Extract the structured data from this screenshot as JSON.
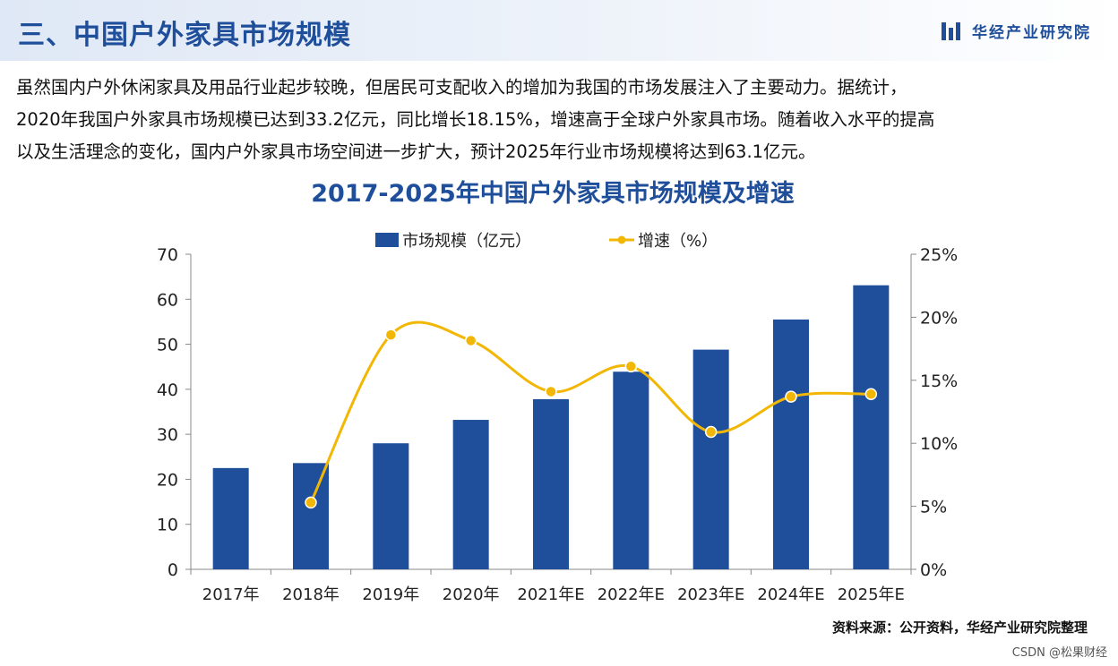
{
  "header": {
    "title": "三、中国户外家具市场规模",
    "logo_text": "华经产业研究院"
  },
  "intro": {
    "lines": [
      "虽然国内户外休闲家具及用品行业起步较晚，但居民可支配收入的增加为我国的市场发展注入了主要动力。据统计，",
      "2020年我国户外家具市场规模已达到33.2亿元，同比增长18.15%，增速高于全球户外家具市场。随着收入水平的提高",
      "以及生活理念的变化，国内户外家具市场空间进一步扩大，预计2025年行业市场规模将达到63.1亿元。"
    ]
  },
  "chart_data": {
    "type": "bar",
    "title": "2017-2025年中国户外家具市场规模及增速",
    "categories": [
      "2017年",
      "2018年",
      "2019年",
      "2020年",
      "2021年E",
      "2022年E",
      "2023年E",
      "2024年E",
      "2025年E"
    ],
    "series": [
      {
        "name": "市场规模（亿元）",
        "type": "bar",
        "axis": "left",
        "color": "#1f4e9a",
        "values": [
          22.5,
          23.6,
          28.0,
          33.2,
          37.8,
          43.9,
          48.8,
          55.5,
          63.1
        ]
      },
      {
        "name": "增速（%）",
        "type": "line",
        "axis": "right",
        "color": "#f2b705",
        "values": [
          null,
          5.3,
          18.6,
          18.15,
          14.1,
          16.1,
          10.9,
          13.7,
          13.9
        ]
      }
    ],
    "left_axis": {
      "min": 0,
      "max": 70,
      "step": 10,
      "tick_labels": [
        "0",
        "10",
        "20",
        "30",
        "40",
        "50",
        "60",
        "70"
      ]
    },
    "right_axis": {
      "min": 0,
      "max": 25,
      "step": 5,
      "tick_labels": [
        "0%",
        "5%",
        "10%",
        "15%",
        "20%",
        "25%"
      ]
    },
    "legend_position": "top-center",
    "grid": false
  },
  "footer": {
    "source": "资料来源：公开资料，华经产业研究院整理",
    "credit": "CSDN @松果财经"
  }
}
